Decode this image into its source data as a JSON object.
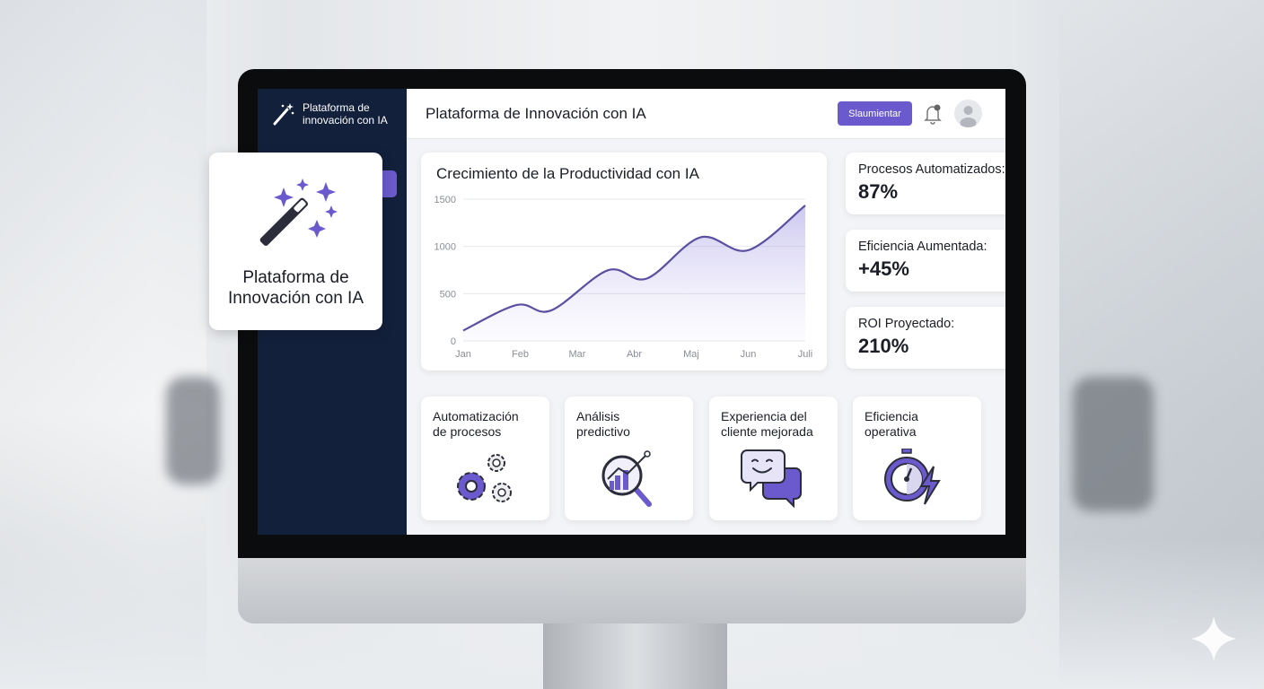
{
  "app": {
    "brand": "Plataforma de innovación con IA",
    "header_title": "Plataforma de Innovación con IA",
    "header_button": "Slaumientar",
    "accent": "#6a5acd",
    "sidebar_color": "#13203b"
  },
  "floating_card": {
    "title": "Plataforma de Innovación con IA",
    "icon": "magic-wand-icon"
  },
  "stats": [
    {
      "label": "Procesos Automatizados:",
      "value": "87%"
    },
    {
      "label": "Eficiencia Aumentada:",
      "value": "+45%"
    },
    {
      "label": "ROI Proyectado:",
      "value": "210%"
    }
  ],
  "features": [
    {
      "title": "Automatización de procesos",
      "icon": "gears-icon"
    },
    {
      "title": "Análisis predictivo",
      "icon": "magnifier-chart-icon"
    },
    {
      "title": "Experiencia del cliente mejorada",
      "icon": "chat-bubbles-icon"
    },
    {
      "title": "Eficiencia operativa",
      "icon": "stopwatch-lightning-icon"
    }
  ],
  "chart_data": {
    "type": "area",
    "title": "Crecimiento de la Productividad con IA",
    "categories": [
      "Jan",
      "Feb",
      "Mar",
      "Abr",
      "Maj",
      "Jun",
      "Juli"
    ],
    "yticks": [
      "0",
      "500",
      "1000",
      "1500"
    ],
    "ylim": [
      0,
      1500
    ],
    "grid": true,
    "series": [
      {
        "x": [
          0,
          0.94,
          1.54,
          2.54,
          3.22,
          4.16,
          5.0,
          6
        ],
        "values": [
          110,
          380,
          322,
          748,
          660,
          1096,
          960,
          1434
        ]
      }
    ],
    "color": "#5a4fa0"
  }
}
